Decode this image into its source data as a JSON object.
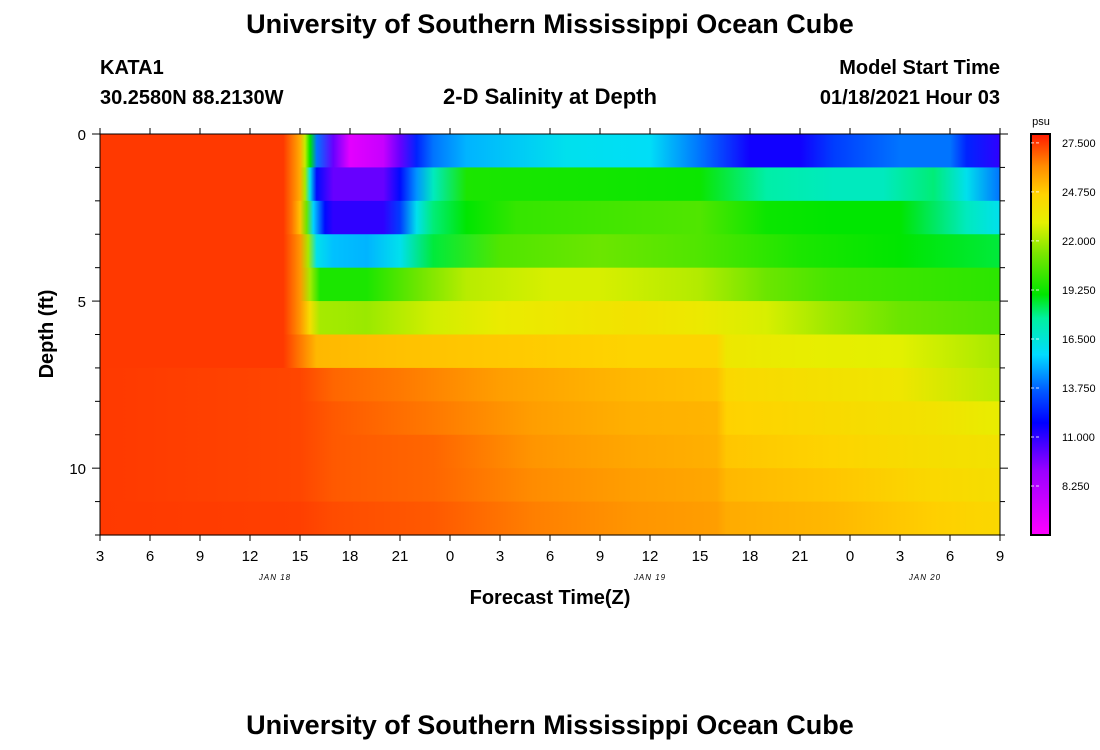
{
  "page": {
    "title_top": "University of Southern Mississippi Ocean Cube",
    "title_bottom": "University of Southern Mississippi Ocean Cube",
    "station": "KATA1",
    "coords": "30.2580N 88.2130W",
    "plot_title": "2-D Salinity at Depth",
    "model_label": "Model Start Time",
    "model_time": "01/18/2021 Hour 03"
  },
  "chart_data": {
    "type": "heatmap",
    "title": "2-D Salinity at Depth",
    "xlabel": "Forecast Time(Z)",
    "ylabel": "Depth (ft)",
    "x_range": [
      0,
      54
    ],
    "y_range": [
      0,
      12
    ],
    "x_ticks": [
      {
        "t": 0,
        "label": "3"
      },
      {
        "t": 3,
        "label": "6"
      },
      {
        "t": 6,
        "label": "9"
      },
      {
        "t": 9,
        "label": "12"
      },
      {
        "t": 12,
        "label": "15"
      },
      {
        "t": 15,
        "label": "18"
      },
      {
        "t": 18,
        "label": "21"
      },
      {
        "t": 21,
        "label": "0"
      },
      {
        "t": 24,
        "label": "3"
      },
      {
        "t": 27,
        "label": "6"
      },
      {
        "t": 30,
        "label": "9"
      },
      {
        "t": 33,
        "label": "12"
      },
      {
        "t": 36,
        "label": "15"
      },
      {
        "t": 39,
        "label": "18"
      },
      {
        "t": 42,
        "label": "21"
      },
      {
        "t": 45,
        "label": "0"
      },
      {
        "t": 48,
        "label": "3"
      },
      {
        "t": 51,
        "label": "6"
      },
      {
        "t": 54,
        "label": "9"
      }
    ],
    "date_labels": [
      {
        "t": 10.5,
        "label": "JAN 18"
      },
      {
        "t": 33,
        "label": "JAN 19"
      },
      {
        "t": 49.5,
        "label": "JAN 20"
      }
    ],
    "y_ticks": [
      {
        "v": 0,
        "label": "0"
      },
      {
        "v": 5,
        "label": "5"
      },
      {
        "v": 10,
        "label": "10"
      }
    ],
    "colorbar": {
      "unit": "psu",
      "min": 5.5,
      "max": 28.0,
      "ticks": [
        {
          "v": 27.5,
          "label": "27.500"
        },
        {
          "v": 24.75,
          "label": "24.750"
        },
        {
          "v": 22.0,
          "label": "22.000"
        },
        {
          "v": 19.25,
          "label": "19.250"
        },
        {
          "v": 16.5,
          "label": "16.500"
        },
        {
          "v": 13.75,
          "label": "13.750"
        },
        {
          "v": 11.0,
          "label": "11.000"
        },
        {
          "v": 8.25,
          "label": "8.250"
        }
      ]
    },
    "layers": [
      {
        "depth_top": 0,
        "depth_bottom": 1,
        "profile": [
          [
            0,
            27.5
          ],
          [
            11,
            27.5
          ],
          [
            11.5,
            26.6
          ],
          [
            12,
            25.5
          ],
          [
            12.3,
            22.5
          ],
          [
            12.6,
            19
          ],
          [
            13,
            14
          ],
          [
            14,
            10
          ],
          [
            15,
            6.5
          ],
          [
            17,
            7.5
          ],
          [
            18,
            10
          ],
          [
            19,
            12.5
          ],
          [
            20,
            14
          ],
          [
            22,
            15
          ],
          [
            28,
            16
          ],
          [
            33,
            15.8
          ],
          [
            36,
            14
          ],
          [
            39,
            11.5
          ],
          [
            42,
            11.5
          ],
          [
            44,
            13
          ],
          [
            48,
            14
          ],
          [
            51,
            14
          ],
          [
            52,
            12.5
          ],
          [
            54,
            11
          ]
        ]
      },
      {
        "depth_top": 1,
        "depth_bottom": 2,
        "profile": [
          [
            0,
            27.5
          ],
          [
            11,
            27.5
          ],
          [
            11.5,
            26.6
          ],
          [
            12,
            25.5
          ],
          [
            12.3,
            22
          ],
          [
            12.6,
            16
          ],
          [
            13,
            12
          ],
          [
            14,
            10
          ],
          [
            17,
            10
          ],
          [
            18,
            12
          ],
          [
            19,
            14.5
          ],
          [
            20,
            17
          ],
          [
            22,
            19.5
          ],
          [
            36,
            19.2
          ],
          [
            40,
            17.5
          ],
          [
            44,
            17
          ],
          [
            47,
            17
          ],
          [
            50,
            18
          ],
          [
            52,
            16
          ],
          [
            54,
            14
          ]
        ]
      },
      {
        "depth_top": 2,
        "depth_bottom": 3,
        "profile": [
          [
            0,
            27.5
          ],
          [
            11,
            27.5
          ],
          [
            11.5,
            26.6
          ],
          [
            12,
            25
          ],
          [
            12.4,
            21
          ],
          [
            12.8,
            15.5
          ],
          [
            13.5,
            12
          ],
          [
            14,
            11
          ],
          [
            17,
            11
          ],
          [
            18,
            13
          ],
          [
            19,
            16
          ],
          [
            20,
            18
          ],
          [
            22,
            19
          ],
          [
            25,
            20
          ],
          [
            36,
            20.5
          ],
          [
            40,
            19.2
          ],
          [
            44,
            19
          ],
          [
            48,
            19
          ],
          [
            52,
            17
          ],
          [
            54,
            16
          ]
        ]
      },
      {
        "depth_top": 3,
        "depth_bottom": 4,
        "profile": [
          [
            0,
            27.5
          ],
          [
            11,
            27.5
          ],
          [
            12,
            26
          ],
          [
            12.5,
            22
          ],
          [
            13,
            16
          ],
          [
            14,
            15.2
          ],
          [
            16,
            15
          ],
          [
            18,
            16
          ],
          [
            20,
            18.5
          ],
          [
            24,
            20.5
          ],
          [
            30,
            21
          ],
          [
            36,
            20.5
          ],
          [
            42,
            19.5
          ],
          [
            48,
            19
          ],
          [
            54,
            18.5
          ]
        ]
      },
      {
        "depth_top": 4,
        "depth_bottom": 5,
        "profile": [
          [
            0,
            27.5
          ],
          [
            11,
            27.5
          ],
          [
            12,
            26
          ],
          [
            12.6,
            22
          ],
          [
            13.2,
            19.5
          ],
          [
            16,
            19.5
          ],
          [
            19,
            21
          ],
          [
            22,
            22.3
          ],
          [
            27,
            22.8
          ],
          [
            30,
            22.8
          ],
          [
            36,
            22.2
          ],
          [
            40,
            21
          ],
          [
            44,
            20.3
          ],
          [
            50,
            20
          ],
          [
            54,
            19.8
          ]
        ]
      },
      {
        "depth_top": 5,
        "depth_bottom": 6,
        "profile": [
          [
            0,
            27.5
          ],
          [
            11,
            27.5
          ],
          [
            12,
            26
          ],
          [
            12.6,
            24
          ],
          [
            13.2,
            22
          ],
          [
            16,
            21.8
          ],
          [
            20,
            22.7
          ],
          [
            24,
            23.3
          ],
          [
            32,
            23.8
          ],
          [
            36,
            23.4
          ],
          [
            40,
            22.8
          ],
          [
            44,
            21.8
          ],
          [
            48,
            21
          ],
          [
            54,
            20.5
          ]
        ]
      },
      {
        "depth_top": 6,
        "depth_bottom": 7,
        "profile": [
          [
            0,
            27.5
          ],
          [
            11,
            27.5
          ],
          [
            12,
            26.5
          ],
          [
            13,
            25.2
          ],
          [
            18,
            25
          ],
          [
            25,
            24.8
          ],
          [
            32,
            24.5
          ],
          [
            37,
            24.5
          ],
          [
            37.6,
            23.5
          ],
          [
            42,
            23.2
          ],
          [
            48,
            23
          ],
          [
            54,
            22
          ]
        ]
      },
      {
        "depth_top": 7,
        "depth_bottom": 8,
        "profile": [
          [
            0,
            27.5
          ],
          [
            12,
            27.3
          ],
          [
            14,
            26.8
          ],
          [
            18,
            26.5
          ],
          [
            24,
            25.8
          ],
          [
            32,
            25.2
          ],
          [
            37,
            25
          ],
          [
            37.6,
            24.3
          ],
          [
            42,
            24
          ],
          [
            48,
            23.6
          ],
          [
            54,
            22.3
          ]
        ]
      },
      {
        "depth_top": 8,
        "depth_bottom": 9,
        "profile": [
          [
            0,
            27.5
          ],
          [
            12,
            27.3
          ],
          [
            14,
            27
          ],
          [
            20,
            26.5
          ],
          [
            26,
            25.8
          ],
          [
            32,
            25.4
          ],
          [
            37,
            25.3
          ],
          [
            37.6,
            24.6
          ],
          [
            44,
            24.2
          ],
          [
            50,
            23.8
          ],
          [
            54,
            23.2
          ]
        ]
      },
      {
        "depth_top": 9,
        "depth_bottom": 10,
        "profile": [
          [
            0,
            27.5
          ],
          [
            12,
            27.3
          ],
          [
            14,
            27
          ],
          [
            20,
            26.8
          ],
          [
            26,
            26
          ],
          [
            32,
            25.6
          ],
          [
            37,
            25.4
          ],
          [
            37.6,
            24.9
          ],
          [
            44,
            24.5
          ],
          [
            50,
            24
          ],
          [
            54,
            23.8
          ]
        ]
      },
      {
        "depth_top": 10,
        "depth_bottom": 11,
        "profile": [
          [
            0,
            27.5
          ],
          [
            12,
            27.3
          ],
          [
            14,
            27
          ],
          [
            20,
            26.8
          ],
          [
            26,
            26.2
          ],
          [
            32,
            25.8
          ],
          [
            37,
            25.6
          ],
          [
            37.6,
            25.2
          ],
          [
            44,
            24.9
          ],
          [
            50,
            24.3
          ],
          [
            54,
            24
          ]
        ]
      },
      {
        "depth_top": 11,
        "depth_bottom": 12,
        "profile": [
          [
            0,
            27.5
          ],
          [
            12,
            27.4
          ],
          [
            14,
            27.2
          ],
          [
            20,
            27
          ],
          [
            26,
            26.4
          ],
          [
            32,
            26
          ],
          [
            37,
            25.8
          ],
          [
            37.6,
            25.5
          ],
          [
            44,
            25.2
          ],
          [
            50,
            24.7
          ],
          [
            54,
            24.3
          ]
        ]
      }
    ]
  }
}
